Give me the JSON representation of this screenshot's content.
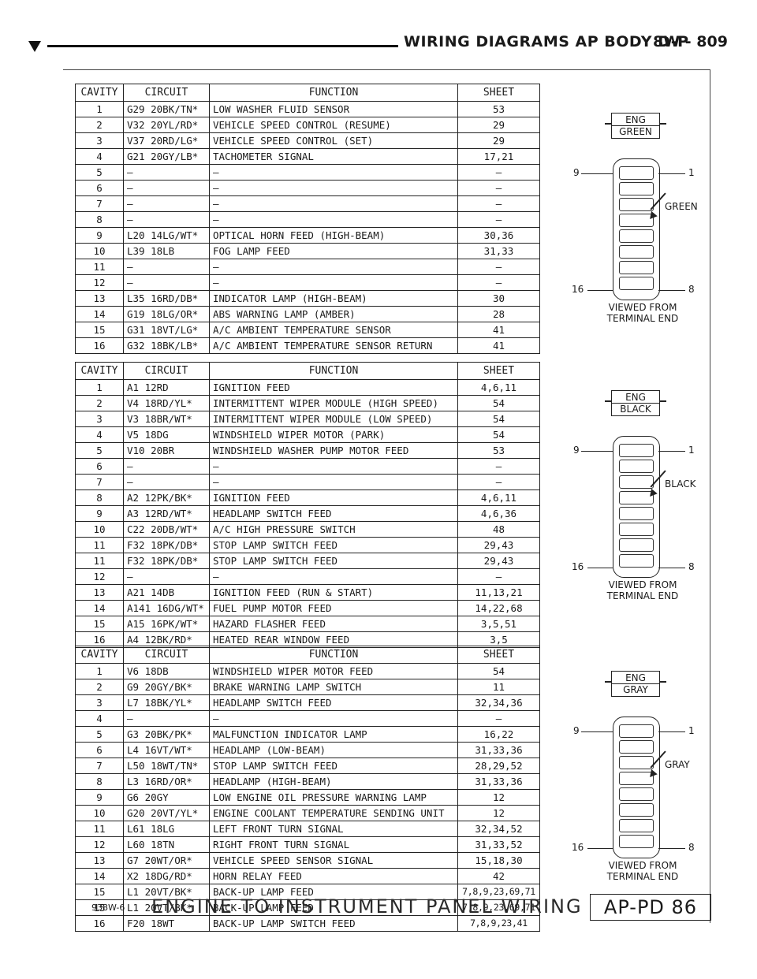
{
  "header": {
    "title": "WIRING DIAGRAMS AP BODY D-P",
    "page": "8W - 809"
  },
  "columns": {
    "cavity": "CAVITY",
    "circuit": "CIRCUIT",
    "function": "FUNCTION",
    "sheet": "SHEET"
  },
  "tables": [
    {
      "rows": [
        [
          "1",
          "G29 20BK/TN*",
          "LOW WASHER FLUID SENSOR",
          "53"
        ],
        [
          "2",
          "V32 20YL/RD*",
          "VEHICLE SPEED CONTROL (RESUME)",
          "29"
        ],
        [
          "3",
          "V37 20RD/LG*",
          "VEHICLE SPEED CONTROL (SET)",
          "29"
        ],
        [
          "4",
          "G21 20GY/LB*",
          "TACHOMETER SIGNAL",
          "17,21"
        ],
        [
          "5",
          "—",
          "—",
          "—"
        ],
        [
          "6",
          "—",
          "—",
          "—"
        ],
        [
          "7",
          "—",
          "—",
          "—"
        ],
        [
          "8",
          "—",
          "—",
          "—"
        ],
        [
          "9",
          "L20 14LG/WT*",
          "OPTICAL HORN FEED (HIGH-BEAM)",
          "30,36"
        ],
        [
          "10",
          "L39 18LB",
          "FOG LAMP FEED",
          "31,33"
        ],
        [
          "11",
          "—",
          "—",
          "—"
        ],
        [
          "12",
          "—",
          "—",
          "—"
        ],
        [
          "13",
          "L35 16RD/DB*",
          "INDICATOR LAMP (HIGH-BEAM)",
          "30"
        ],
        [
          "14",
          "G19 18LG/OR*",
          "ABS WARNING LAMP (AMBER)",
          "28"
        ],
        [
          "15",
          "G31 18VT/LG*",
          "A/C AMBIENT TEMPERATURE SENSOR",
          "41"
        ],
        [
          "16",
          "G32 18BK/LB*",
          "A/C AMBIENT TEMPERATURE SENSOR RETURN",
          "41"
        ]
      ]
    },
    {
      "rows": [
        [
          "1",
          "A1 12RD",
          "IGNITION FEED",
          "4,6,11"
        ],
        [
          "2",
          "V4 18RD/YL*",
          "INTERMITTENT WIPER MODULE (HIGH SPEED)",
          "54"
        ],
        [
          "3",
          "V3 18BR/WT*",
          "INTERMITTENT WIPER MODULE (LOW SPEED)",
          "54"
        ],
        [
          "4",
          "V5 18DG",
          "WINDSHIELD WIPER MOTOR (PARK)",
          "54"
        ],
        [
          "5",
          "V10 20BR",
          "WINDSHIELD WASHER PUMP MOTOR FEED",
          "53"
        ],
        [
          "6",
          "—",
          "—",
          "—"
        ],
        [
          "7",
          "—",
          "—",
          "—"
        ],
        [
          "8",
          "A2 12PK/BK*",
          "IGNITION FEED",
          "4,6,11"
        ],
        [
          "9",
          "A3 12RD/WT*",
          "HEADLAMP SWITCH FEED",
          "4,6,36"
        ],
        [
          "10",
          "C22 20DB/WT*",
          "A/C HIGH PRESSURE SWITCH",
          "48"
        ],
        [
          "11",
          "F32 18PK/DB*",
          "STOP LAMP SWITCH FEED",
          "29,43"
        ],
        [
          "11",
          "F32 18PK/DB*",
          "STOP LAMP SWITCH FEED",
          "29,43"
        ],
        [
          "12",
          "—",
          "—",
          "—"
        ],
        [
          "13",
          "A21 14DB",
          "IGNITION FEED (RUN & START)",
          "11,13,21"
        ],
        [
          "14",
          "A141 16DG/WT*",
          "FUEL PUMP MOTOR FEED",
          "14,22,68"
        ],
        [
          "15",
          "A15 16PK/WT*",
          "HAZARD FLASHER FEED",
          "3,5,51"
        ],
        [
          "16",
          "A4 12BK/RD*",
          "HEATED REAR WINDOW FEED",
          "3,5"
        ]
      ]
    },
    {
      "rows": [
        [
          "1",
          "V6 18DB",
          "WINDSHIELD WIPER MOTOR FEED",
          "54"
        ],
        [
          "2",
          "G9 20GY/BK*",
          "BRAKE WARNING LAMP SWITCH",
          "11"
        ],
        [
          "3",
          "L7 18BK/YL*",
          "HEADLAMP SWITCH FEED",
          "32,34,36"
        ],
        [
          "4",
          "—",
          "—",
          "—"
        ],
        [
          "5",
          "G3 20BK/PK*",
          "MALFUNCTION INDICATOR LAMP",
          "16,22"
        ],
        [
          "6",
          "L4 16VT/WT*",
          "HEADLAMP (LOW-BEAM)",
          "31,33,36"
        ],
        [
          "7",
          "L50 18WT/TN*",
          "STOP LAMP SWITCH FEED",
          "28,29,52"
        ],
        [
          "8",
          "L3 16RD/OR*",
          "HEADLAMP (HIGH-BEAM)",
          "31,33,36"
        ],
        [
          "9",
          "G6 20GY",
          "LOW ENGINE OIL PRESSURE WARNING LAMP",
          "12"
        ],
        [
          "10",
          "G20 20VT/YL*",
          "ENGINE COOLANT TEMPERATURE SENDING UNIT",
          "12"
        ],
        [
          "11",
          "L61 18LG",
          "LEFT FRONT TURN SIGNAL",
          "32,34,52"
        ],
        [
          "12",
          "L60 18TN",
          "RIGHT FRONT TURN SIGNAL",
          "31,33,52"
        ],
        [
          "13",
          "G7 20WT/OR*",
          "VEHICLE SPEED SENSOR SIGNAL",
          "15,18,30"
        ],
        [
          "14",
          "X2 18DG/RD*",
          "HORN RELAY FEED",
          "42"
        ],
        [
          "15",
          "L1 20VT/BK*",
          "BACK-UP LAMP FEED",
          "7,8,9,23,69,71"
        ],
        [
          "15",
          "L1 20VT/BK*",
          "BACK-UP LAMP FEED",
          "7,8,9,23,69,71"
        ],
        [
          "16",
          "F20 18WT",
          "BACK-UP LAMP SWITCH FEED",
          "7,8,9,23,41"
        ]
      ]
    }
  ],
  "connectors": [
    {
      "tag_top": "ENG",
      "tag_bottom": "GREEN",
      "color": "GREEN",
      "pin_tl": "9",
      "pin_tr": "1",
      "pin_bl": "16",
      "pin_br": "8",
      "view1": "VIEWED FROM",
      "view2": "TERMINAL END"
    },
    {
      "tag_top": "ENG",
      "tag_bottom": "BLACK",
      "color": "BLACK",
      "pin_tl": "9",
      "pin_tr": "1",
      "pin_bl": "16",
      "pin_br": "8",
      "view1": "VIEWED FROM",
      "view2": "TERMINAL END"
    },
    {
      "tag_top": "ENG",
      "tag_bottom": "GRAY",
      "color": "GRAY",
      "pin_tl": "9",
      "pin_tr": "1",
      "pin_bl": "16",
      "pin_br": "8",
      "view1": "VIEWED FROM",
      "view2": "TERMINAL END"
    }
  ],
  "footer": {
    "code": "938W-6",
    "caption": "ENGINE TO INSTRUMENT PANEL WIRING",
    "box": "AP-PD 86"
  }
}
